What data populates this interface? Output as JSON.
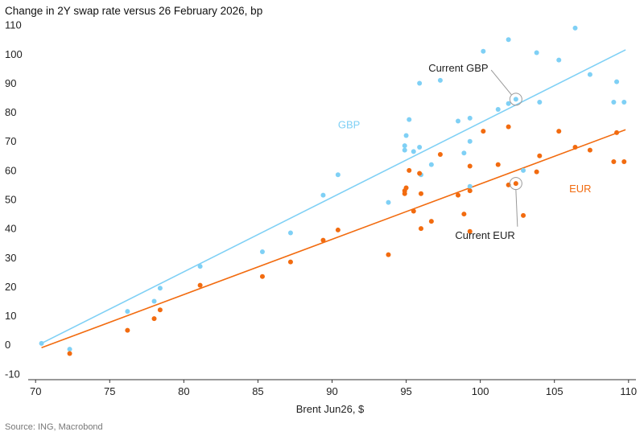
{
  "chart_data": {
    "type": "scatter",
    "title": "Change in 2Y swap rate versus 26 February 2026, bp",
    "xlabel": "Brent Jun26, $",
    "ylabel": "",
    "source": "Source: ING, Macrobond",
    "xlim": [
      69.5,
      110.5
    ],
    "ylim": [
      -12,
      112
    ],
    "x_ticks": [
      70,
      75,
      80,
      85,
      90,
      95,
      100,
      105,
      110
    ],
    "y_ticks": [
      -10,
      0,
      10,
      20,
      30,
      40,
      50,
      60,
      70,
      80,
      90,
      100,
      110
    ],
    "grid": false,
    "series": [
      {
        "name": "GBP",
        "color": "#7fd0f5",
        "points": [
          [
            70.4,
            0.5
          ],
          [
            72.3,
            -1.5
          ],
          [
            76.2,
            11.5
          ],
          [
            78.0,
            15.0
          ],
          [
            78.4,
            19.5
          ],
          [
            81.1,
            27.0
          ],
          [
            85.3,
            32.0
          ],
          [
            87.2,
            38.5
          ],
          [
            89.4,
            51.5
          ],
          [
            90.4,
            58.5
          ],
          [
            93.8,
            49.0
          ],
          [
            94.9,
            67.0
          ],
          [
            94.9,
            68.5
          ],
          [
            95.0,
            72.0
          ],
          [
            95.2,
            77.5
          ],
          [
            95.5,
            66.5
          ],
          [
            95.9,
            68.0
          ],
          [
            96.0,
            58.5
          ],
          [
            95.9,
            90.0
          ],
          [
            96.7,
            62.0
          ],
          [
            97.3,
            91.0
          ],
          [
            98.5,
            77.0
          ],
          [
            98.9,
            66.0
          ],
          [
            99.3,
            70.0
          ],
          [
            99.3,
            78.0
          ],
          [
            99.3,
            54.5
          ],
          [
            100.2,
            101.0
          ],
          [
            101.2,
            81.0
          ],
          [
            101.9,
            105.0
          ],
          [
            101.9,
            83.0
          ],
          [
            102.4,
            84.5
          ],
          [
            102.9,
            60.0
          ],
          [
            103.8,
            100.5
          ],
          [
            104.0,
            83.5
          ],
          [
            105.3,
            98.0
          ],
          [
            106.4,
            109.0
          ],
          [
            107.4,
            93.0
          ],
          [
            109.0,
            83.5
          ],
          [
            109.2,
            90.5
          ],
          [
            109.7,
            83.5
          ]
        ],
        "trend": [
          [
            70.4,
            0.5
          ],
          [
            109.8,
            101.5
          ]
        ],
        "label": "GBP",
        "label_pos": [
          90.4,
          74.5
        ],
        "annotation": {
          "text": "Current GBP",
          "point": [
            102.4,
            84.5
          ],
          "text_pos": [
            96.5,
            94
          ]
        }
      },
      {
        "name": "EUR",
        "color": "#f26b0f",
        "points": [
          [
            72.3,
            -3.0
          ],
          [
            76.2,
            5.0
          ],
          [
            78.0,
            9.0
          ],
          [
            78.4,
            12.0
          ],
          [
            81.1,
            20.5
          ],
          [
            85.3,
            23.5
          ],
          [
            87.2,
            28.5
          ],
          [
            89.4,
            36.0
          ],
          [
            90.4,
            39.5
          ],
          [
            93.8,
            31.0
          ],
          [
            94.9,
            52.0
          ],
          [
            94.9,
            53.0
          ],
          [
            95.0,
            54.0
          ],
          [
            95.2,
            60.0
          ],
          [
            95.5,
            46.0
          ],
          [
            95.9,
            59.0
          ],
          [
            96.0,
            52.0
          ],
          [
            96.0,
            40.0
          ],
          [
            96.7,
            42.5
          ],
          [
            97.3,
            65.5
          ],
          [
            98.5,
            51.5
          ],
          [
            98.9,
            45.0
          ],
          [
            99.3,
            39.0
          ],
          [
            99.3,
            53.0
          ],
          [
            99.3,
            61.5
          ],
          [
            100.2,
            73.5
          ],
          [
            101.2,
            62.0
          ],
          [
            101.9,
            75.0
          ],
          [
            101.9,
            55.0
          ],
          [
            102.4,
            55.5
          ],
          [
            102.9,
            44.5
          ],
          [
            103.8,
            59.5
          ],
          [
            104.0,
            65.0
          ],
          [
            105.3,
            73.5
          ],
          [
            106.4,
            68.0
          ],
          [
            107.4,
            67.0
          ],
          [
            109.0,
            63.0
          ],
          [
            109.2,
            73.0
          ],
          [
            109.7,
            63.0
          ]
        ],
        "trend": [
          [
            70.4,
            -1.0
          ],
          [
            109.8,
            74.0
          ]
        ],
        "label": "EUR",
        "label_pos": [
          106.0,
          52.5
        ],
        "annotation": {
          "text": "Current EUR",
          "point": [
            102.4,
            55.5
          ],
          "text_pos": [
            98.3,
            36.5
          ]
        }
      }
    ]
  }
}
